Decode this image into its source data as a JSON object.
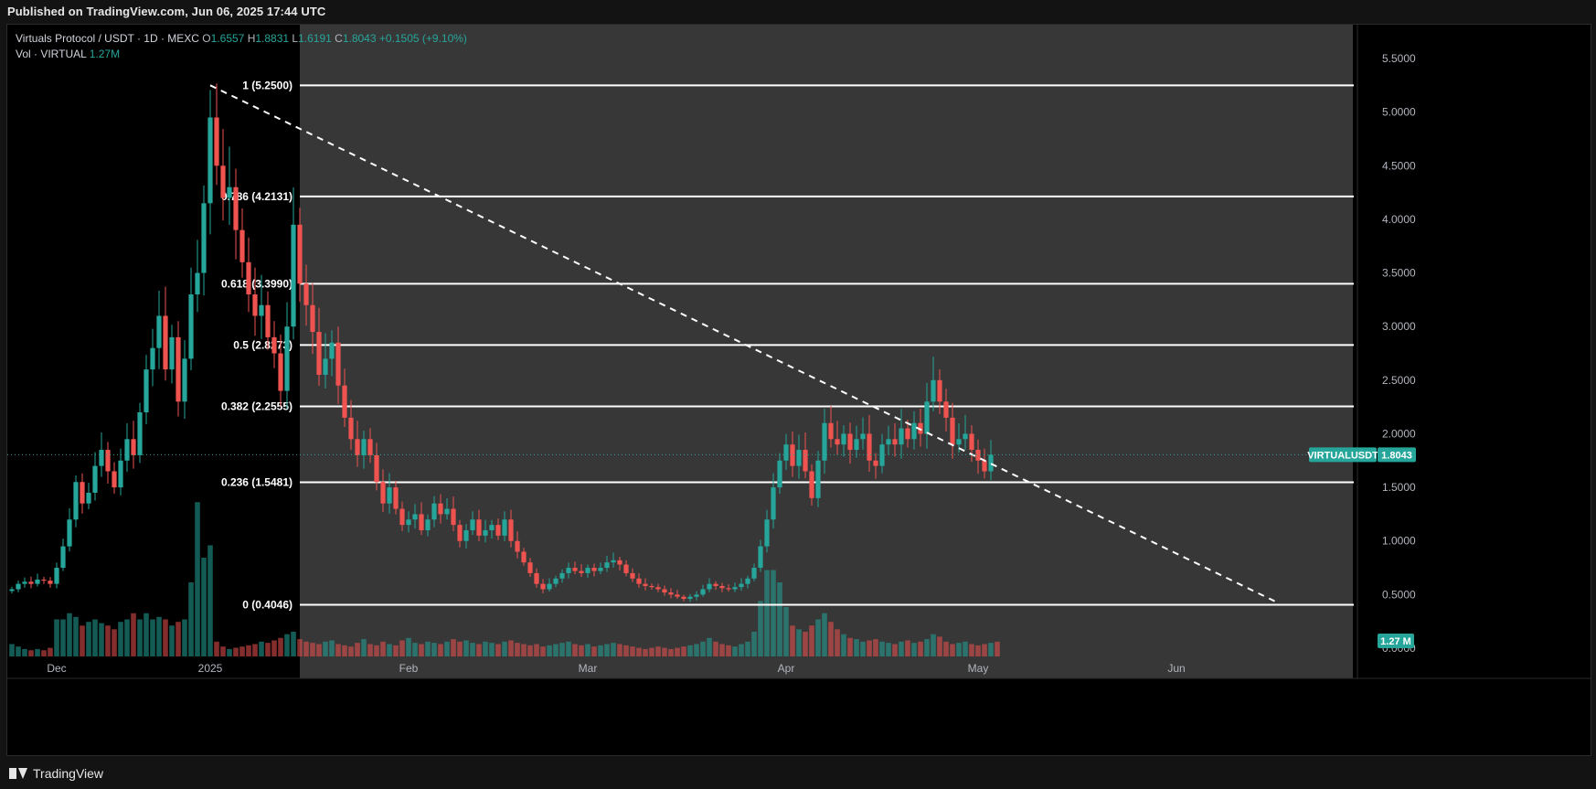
{
  "header": {
    "published": "Published on TradingView.com, Jun 06, 2025 17:44 UTC"
  },
  "footer": {
    "brand": "TradingView"
  },
  "legend": {
    "symbol": "Virtuals Protocol / USDT · 1D · MEXC",
    "o_label": "O",
    "o_value": "1.6557",
    "h_label": "H",
    "h_value": "1.8831",
    "l_label": "L",
    "l_value": "1.6191",
    "c_label": "C",
    "c_value": "1.8043",
    "change": "+0.1505 (+9.10%)",
    "vol_label": "Vol · VIRTUAL",
    "vol_value": "1.27M"
  },
  "price_tag": {
    "symbol": "VIRTUALUSDT",
    "value": "1.8043",
    "volume": "1.27 M"
  },
  "colors": {
    "up": "#26a69a",
    "down": "#ef5350",
    "fib_zone": "#3a3a3a",
    "background": "#000000"
  },
  "chart_data": {
    "type": "candlestick",
    "y_axis": {
      "min": 0,
      "max": 5.75,
      "side": "right",
      "ticks": [
        "0.0000",
        "0.5000",
        "1.0000",
        "1.5000",
        "2.0000",
        "2.5000",
        "3.0000",
        "3.5000",
        "4.0000",
        "4.5000",
        "5.0000",
        "5.5000"
      ]
    },
    "x_axis": {
      "labels": [
        {
          "text": "Dec",
          "day": 7
        },
        {
          "text": "2025",
          "day": 31
        },
        {
          "text": "Feb",
          "day": 62
        },
        {
          "text": "Mar",
          "day": 90
        },
        {
          "text": "Apr",
          "day": 121
        },
        {
          "text": "May",
          "day": 151
        },
        {
          "text": "Jun",
          "day": 182
        }
      ]
    },
    "fibonacci": [
      {
        "label": "1 (5.2500)",
        "price": 5.25
      },
      {
        "label": "0.786 (4.2131)",
        "price": 4.2131
      },
      {
        "label": "0.618 (3.3990)",
        "price": 3.399
      },
      {
        "label": "0.5 (2.8273)",
        "price": 2.8273
      },
      {
        "label": "0.382 (2.2555)",
        "price": 2.2555
      },
      {
        "label": "0.236 (1.5481)",
        "price": 1.5481
      },
      {
        "label": "0 (0.4046)",
        "price": 0.4046
      }
    ],
    "trendline": {
      "from": {
        "day": 31,
        "price": 5.25
      },
      "to": {
        "day": 198,
        "price": 0.42
      },
      "style": "dashed"
    },
    "last_price": 1.8043,
    "closes": [
      0.55,
      0.6,
      0.62,
      0.6,
      0.64,
      0.63,
      0.6,
      0.75,
      0.95,
      1.2,
      1.55,
      1.35,
      1.45,
      1.7,
      1.85,
      1.65,
      1.5,
      1.75,
      1.95,
      1.8,
      2.2,
      2.6,
      2.8,
      3.1,
      2.6,
      2.9,
      2.3,
      2.7,
      3.3,
      3.5,
      4.15,
      4.95,
      4.5,
      4.2,
      4.3,
      3.9,
      3.6,
      3.3,
      3.1,
      3.2,
      2.9,
      2.75,
      2.4,
      3.0,
      3.95,
      3.4,
      3.2,
      2.95,
      2.55,
      2.7,
      2.85,
      2.45,
      2.15,
      1.95,
      1.8,
      1.95,
      1.8,
      1.55,
      1.35,
      1.5,
      1.3,
      1.15,
      1.2,
      1.25,
      1.1,
      1.2,
      1.35,
      1.25,
      1.3,
      1.15,
      1.0,
      1.1,
      1.2,
      1.05,
      1.1,
      1.15,
      1.05,
      1.2,
      1.0,
      0.9,
      0.8,
      0.7,
      0.6,
      0.55,
      0.6,
      0.65,
      0.7,
      0.75,
      0.72,
      0.7,
      0.75,
      0.72,
      0.75,
      0.8,
      0.82,
      0.78,
      0.7,
      0.65,
      0.6,
      0.58,
      0.57,
      0.55,
      0.52,
      0.5,
      0.48,
      0.46,
      0.48,
      0.5,
      0.55,
      0.6,
      0.58,
      0.56,
      0.55,
      0.57,
      0.6,
      0.65,
      0.75,
      0.95,
      1.2,
      1.5,
      1.75,
      1.9,
      1.7,
      1.85,
      1.65,
      1.4,
      1.75,
      2.1,
      1.95,
      1.9,
      2.0,
      1.85,
      1.95,
      2.0,
      1.75,
      1.7,
      1.9,
      1.95,
      1.9,
      2.05,
      1.95,
      2.1,
      2.0,
      2.3,
      2.5,
      2.3,
      2.15,
      1.9,
      1.95,
      2.0,
      1.85,
      1.75,
      1.65,
      1.8043
    ],
    "volumes": [
      0.1,
      0.08,
      0.06,
      0.05,
      0.06,
      0.05,
      0.07,
      0.3,
      0.3,
      0.35,
      0.32,
      0.25,
      0.28,
      0.3,
      0.27,
      0.25,
      0.22,
      0.28,
      0.3,
      0.35,
      0.3,
      0.35,
      0.3,
      0.32,
      0.3,
      0.25,
      0.28,
      0.3,
      0.6,
      1.25,
      0.8,
      0.9,
      0.12,
      0.08,
      0.06,
      0.07,
      0.08,
      0.09,
      0.1,
      0.12,
      0.11,
      0.13,
      0.15,
      0.18,
      0.2,
      0.14,
      0.12,
      0.11,
      0.1,
      0.12,
      0.13,
      0.1,
      0.09,
      0.08,
      0.11,
      0.14,
      0.1,
      0.09,
      0.12,
      0.1,
      0.09,
      0.13,
      0.15,
      0.11,
      0.1,
      0.12,
      0.11,
      0.1,
      0.12,
      0.14,
      0.12,
      0.13,
      0.11,
      0.1,
      0.12,
      0.11,
      0.1,
      0.12,
      0.13,
      0.11,
      0.1,
      0.09,
      0.1,
      0.08,
      0.09,
      0.1,
      0.11,
      0.12,
      0.1,
      0.09,
      0.1,
      0.08,
      0.09,
      0.1,
      0.11,
      0.1,
      0.09,
      0.08,
      0.07,
      0.06,
      0.07,
      0.08,
      0.07,
      0.06,
      0.07,
      0.08,
      0.09,
      0.1,
      0.12,
      0.15,
      0.12,
      0.1,
      0.09,
      0.08,
      0.1,
      0.12,
      0.2,
      0.45,
      0.7,
      0.7,
      0.6,
      0.4,
      0.25,
      0.22,
      0.2,
      0.25,
      0.3,
      0.35,
      0.28,
      0.22,
      0.18,
      0.15,
      0.14,
      0.12,
      0.13,
      0.14,
      0.12,
      0.11,
      0.1,
      0.12,
      0.13,
      0.11,
      0.12,
      0.14,
      0.18,
      0.16,
      0.12,
      0.1,
      0.11,
      0.12,
      0.1,
      0.09,
      0.1,
      0.11,
      0.12
    ]
  }
}
